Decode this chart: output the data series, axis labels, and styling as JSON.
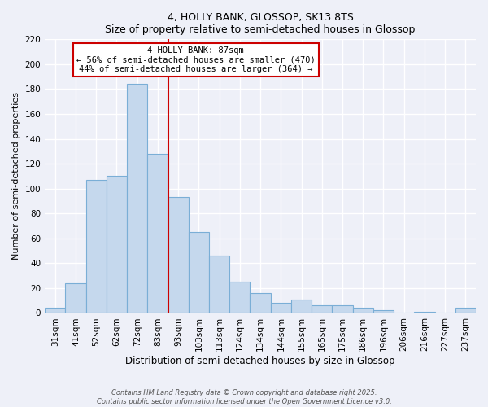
{
  "title": "4, HOLLY BANK, GLOSSOP, SK13 8TS",
  "subtitle": "Size of property relative to semi-detached houses in Glossop",
  "xlabel": "Distribution of semi-detached houses by size in Glossop",
  "ylabel": "Number of semi-detached properties",
  "categories": [
    "31sqm",
    "41sqm",
    "52sqm",
    "62sqm",
    "72sqm",
    "83sqm",
    "93sqm",
    "103sqm",
    "113sqm",
    "124sqm",
    "134sqm",
    "144sqm",
    "155sqm",
    "165sqm",
    "175sqm",
    "186sqm",
    "196sqm",
    "206sqm",
    "216sqm",
    "227sqm",
    "237sqm"
  ],
  "values": [
    4,
    24,
    107,
    110,
    184,
    128,
    93,
    65,
    46,
    25,
    16,
    8,
    11,
    6,
    6,
    4,
    2,
    0,
    1,
    0,
    4
  ],
  "bar_color": "#c5d8ed",
  "bar_edge_color": "#7aaed6",
  "property_label": "4 HOLLY BANK: 87sqm",
  "pct_smaller": 56,
  "pct_smaller_count": 470,
  "pct_larger": 44,
  "pct_larger_count": 364,
  "vline_color": "#cc0000",
  "vline_x": 5.5,
  "ylim": [
    0,
    220
  ],
  "yticks": [
    0,
    20,
    40,
    60,
    80,
    100,
    120,
    140,
    160,
    180,
    200,
    220
  ],
  "background_color": "#eef0f8",
  "grid_color": "#ffffff",
  "footer_line1": "Contains HM Land Registry data © Crown copyright and database right 2025.",
  "footer_line2": "Contains public sector information licensed under the Open Government Licence v3.0."
}
